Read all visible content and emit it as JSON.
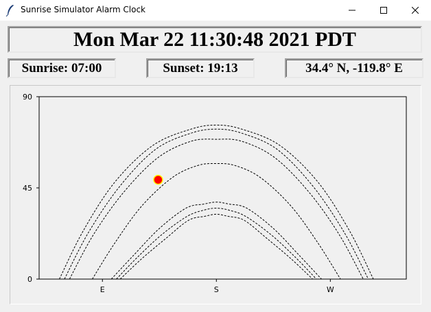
{
  "window": {
    "title": "Sunrise Simulator Alarm Clock",
    "app_icon": "feather-icon",
    "minimize_icon": "minimize-icon",
    "maximize_icon": "maximize-icon",
    "close_icon": "close-icon"
  },
  "clock": {
    "datetime": "Mon Mar 22 11:30:48 2021 PDT"
  },
  "info": {
    "sunrise": "Sunrise: 07:00",
    "sunset": "Sunset: 19:13",
    "location": "34.4° N, -119.8° E"
  },
  "chart_data": {
    "type": "line",
    "ylim": [
      0,
      90
    ],
    "yticks": [
      "0",
      "45",
      "90"
    ],
    "xlim": [
      40,
      330
    ],
    "xticks": [
      {
        "label": "E",
        "value": 90
      },
      {
        "label": "S",
        "value": 180
      },
      {
        "label": "W",
        "value": 270
      }
    ],
    "line_style": "dashed",
    "series": [
      {
        "x": [
          56,
          75,
          100,
          130,
          160,
          180,
          200,
          230,
          260,
          285,
          304
        ],
        "y": [
          0,
          24,
          48,
          66,
          74,
          76,
          74,
          66,
          48,
          24,
          0
        ]
      },
      {
        "x": [
          60,
          79,
          104,
          132,
          160,
          180,
          200,
          228,
          256,
          281,
          300
        ],
        "y": [
          0,
          23,
          46,
          64,
          72,
          74,
          72,
          64,
          46,
          23,
          0
        ]
      },
      {
        "x": [
          64,
          83,
          107,
          134,
          160,
          180,
          200,
          226,
          253,
          277,
          296
        ],
        "y": [
          0,
          22,
          43,
          60,
          68,
          69,
          68,
          60,
          43,
          22,
          0
        ]
      },
      {
        "x": [
          82,
          100,
          121,
          145,
          165,
          180,
          195,
          215,
          239,
          260,
          278
        ],
        "y": [
          0,
          18,
          36,
          50,
          56,
          57,
          56,
          50,
          36,
          18,
          0
        ]
      },
      {
        "x": [
          97,
          115,
          135,
          156,
          170,
          180,
          190,
          204,
          225,
          245,
          263
        ],
        "y": [
          0,
          12,
          25,
          35,
          37,
          38,
          37,
          35,
          25,
          12,
          0
        ]
      },
      {
        "x": [
          101,
          118,
          137,
          157,
          170,
          180,
          190,
          203,
          223,
          242,
          259
        ],
        "y": [
          0,
          11,
          22,
          31,
          34,
          35,
          34,
          31,
          22,
          11,
          0
        ]
      },
      {
        "x": [
          104,
          121,
          140,
          158,
          171,
          180,
          189,
          202,
          220,
          239,
          256
        ],
        "y": [
          0,
          10,
          20,
          29,
          31,
          32,
          31,
          29,
          20,
          10,
          0
        ]
      }
    ],
    "sun_position": {
      "x": 134,
      "y": 49
    },
    "sun_color": "#ff0000",
    "sun_outline": "#ffff00",
    "grid": false
  }
}
